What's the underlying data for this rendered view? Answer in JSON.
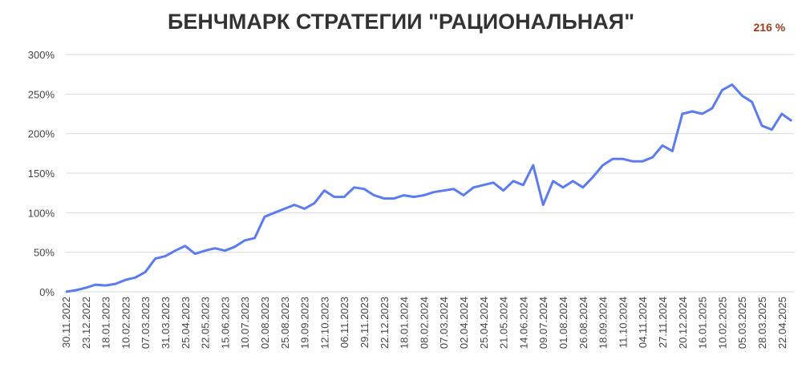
{
  "chart_data": {
    "type": "line",
    "title": "БЕНЧМАРК СТРАТЕГИИ \"РАЦИОНАЛЬНАЯ\"",
    "categories": [
      "30.11.2022",
      null,
      "23.12.2022",
      null,
      "18.01.2023",
      null,
      "10.02.2023",
      null,
      "07.03.2023",
      null,
      "31.03.2023",
      null,
      "25.04.2023",
      null,
      "22.05.2023",
      null,
      "15.06.2023",
      null,
      "10.07.2023",
      null,
      "02.08.2023",
      null,
      "25.08.2023",
      null,
      "19.09.2023",
      null,
      "12.10.2023",
      null,
      "06.11.2023",
      null,
      "29.11.2023",
      null,
      "22.12.2023",
      null,
      "18.01.2024",
      null,
      "08.02.2024",
      null,
      "07.03.2024",
      null,
      "02.04.2024",
      null,
      "25.04.2024",
      null,
      "21.05.2024",
      null,
      "14.06.2024",
      null,
      "09.07.2024",
      null,
      "01.08.2024",
      null,
      "26.08.2024",
      null,
      "18.09.2024",
      null,
      "11.10.2024",
      null,
      "04.11.2024",
      null,
      "27.11.2024",
      null,
      "20.12.2024",
      null,
      "16.01.2025",
      null,
      "10.02.2025",
      null,
      "05.03.2025",
      null,
      "28.03.2025",
      null,
      "22.04.2025",
      null
    ],
    "values": [
      0,
      2,
      5,
      9,
      8,
      10,
      15,
      18,
      25,
      42,
      45,
      52,
      58,
      48,
      52,
      55,
      52,
      57,
      65,
      68,
      95,
      100,
      105,
      110,
      105,
      112,
      128,
      120,
      120,
      132,
      130,
      122,
      118,
      118,
      122,
      120,
      122,
      126,
      128,
      130,
      122,
      132,
      135,
      138,
      128,
      140,
      135,
      160,
      110,
      140,
      132,
      140,
      132,
      145,
      160,
      168,
      168,
      165,
      165,
      170,
      185,
      178,
      225,
      228,
      225,
      232,
      255,
      262,
      248,
      240,
      210,
      205,
      225,
      216
    ],
    "value_labels": [
      null,
      null,
      null,
      null,
      null,
      null,
      null,
      null,
      null,
      null,
      null,
      null,
      null,
      null,
      null,
      null,
      null,
      null,
      null,
      null,
      null,
      null,
      null,
      null,
      null,
      null,
      null,
      null,
      null,
      null,
      null,
      null,
      null,
      null,
      null,
      null,
      null,
      null,
      null,
      null,
      null,
      null,
      null,
      null,
      null,
      null,
      null,
      null,
      null,
      null,
      null,
      null,
      null,
      null,
      null,
      null,
      null,
      null,
      null,
      null,
      null,
      null,
      null,
      null,
      null,
      null,
      null,
      null,
      null,
      null,
      null,
      null,
      null,
      "216 %"
    ],
    "color": "#5b7cf0",
    "label_color": "#a0391c",
    "ylim": [
      0,
      300
    ],
    "yticks": [
      {
        "value": 0,
        "label": "0%"
      },
      {
        "value": 50,
        "label": "50%"
      },
      {
        "value": 100,
        "label": "100%"
      },
      {
        "value": 150,
        "label": "150%"
      },
      {
        "value": 200,
        "label": "200%"
      },
      {
        "value": 250,
        "label": "250%"
      },
      {
        "value": 300,
        "label": "300%"
      }
    ],
    "grid": true
  }
}
